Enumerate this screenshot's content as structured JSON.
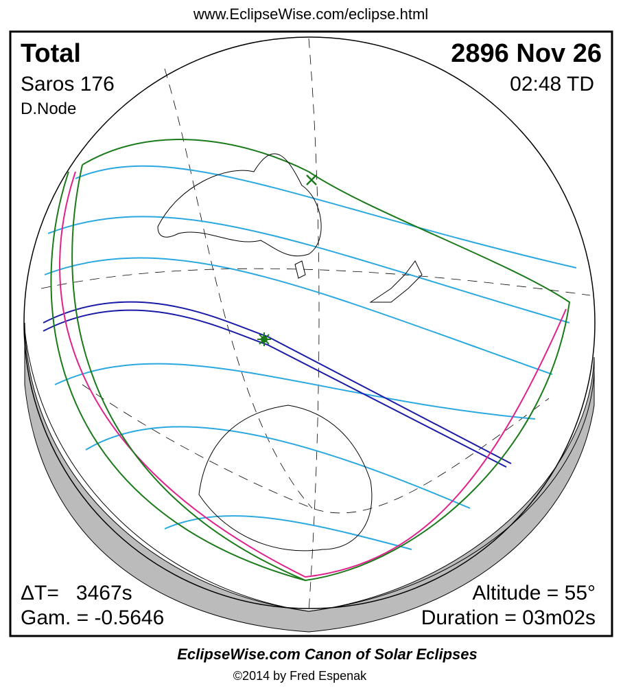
{
  "header": {
    "url": "www.EclipseWise.com/eclipse.html"
  },
  "map": {
    "type": "Total",
    "date": "2896 Nov 26",
    "saros": "Saros 176",
    "time": "02:48 TD",
    "node": "D.Node",
    "delta_t": "ΔT=   3467s",
    "gamma": "Gam. = -0.5646",
    "altitude": "Altitude = 55°",
    "duration": "Duration = 03m02s"
  },
  "footer": {
    "title": "EclipseWise.com Canon of Solar Eclipses",
    "copyright": "©2014 by Fred Espenak"
  }
}
